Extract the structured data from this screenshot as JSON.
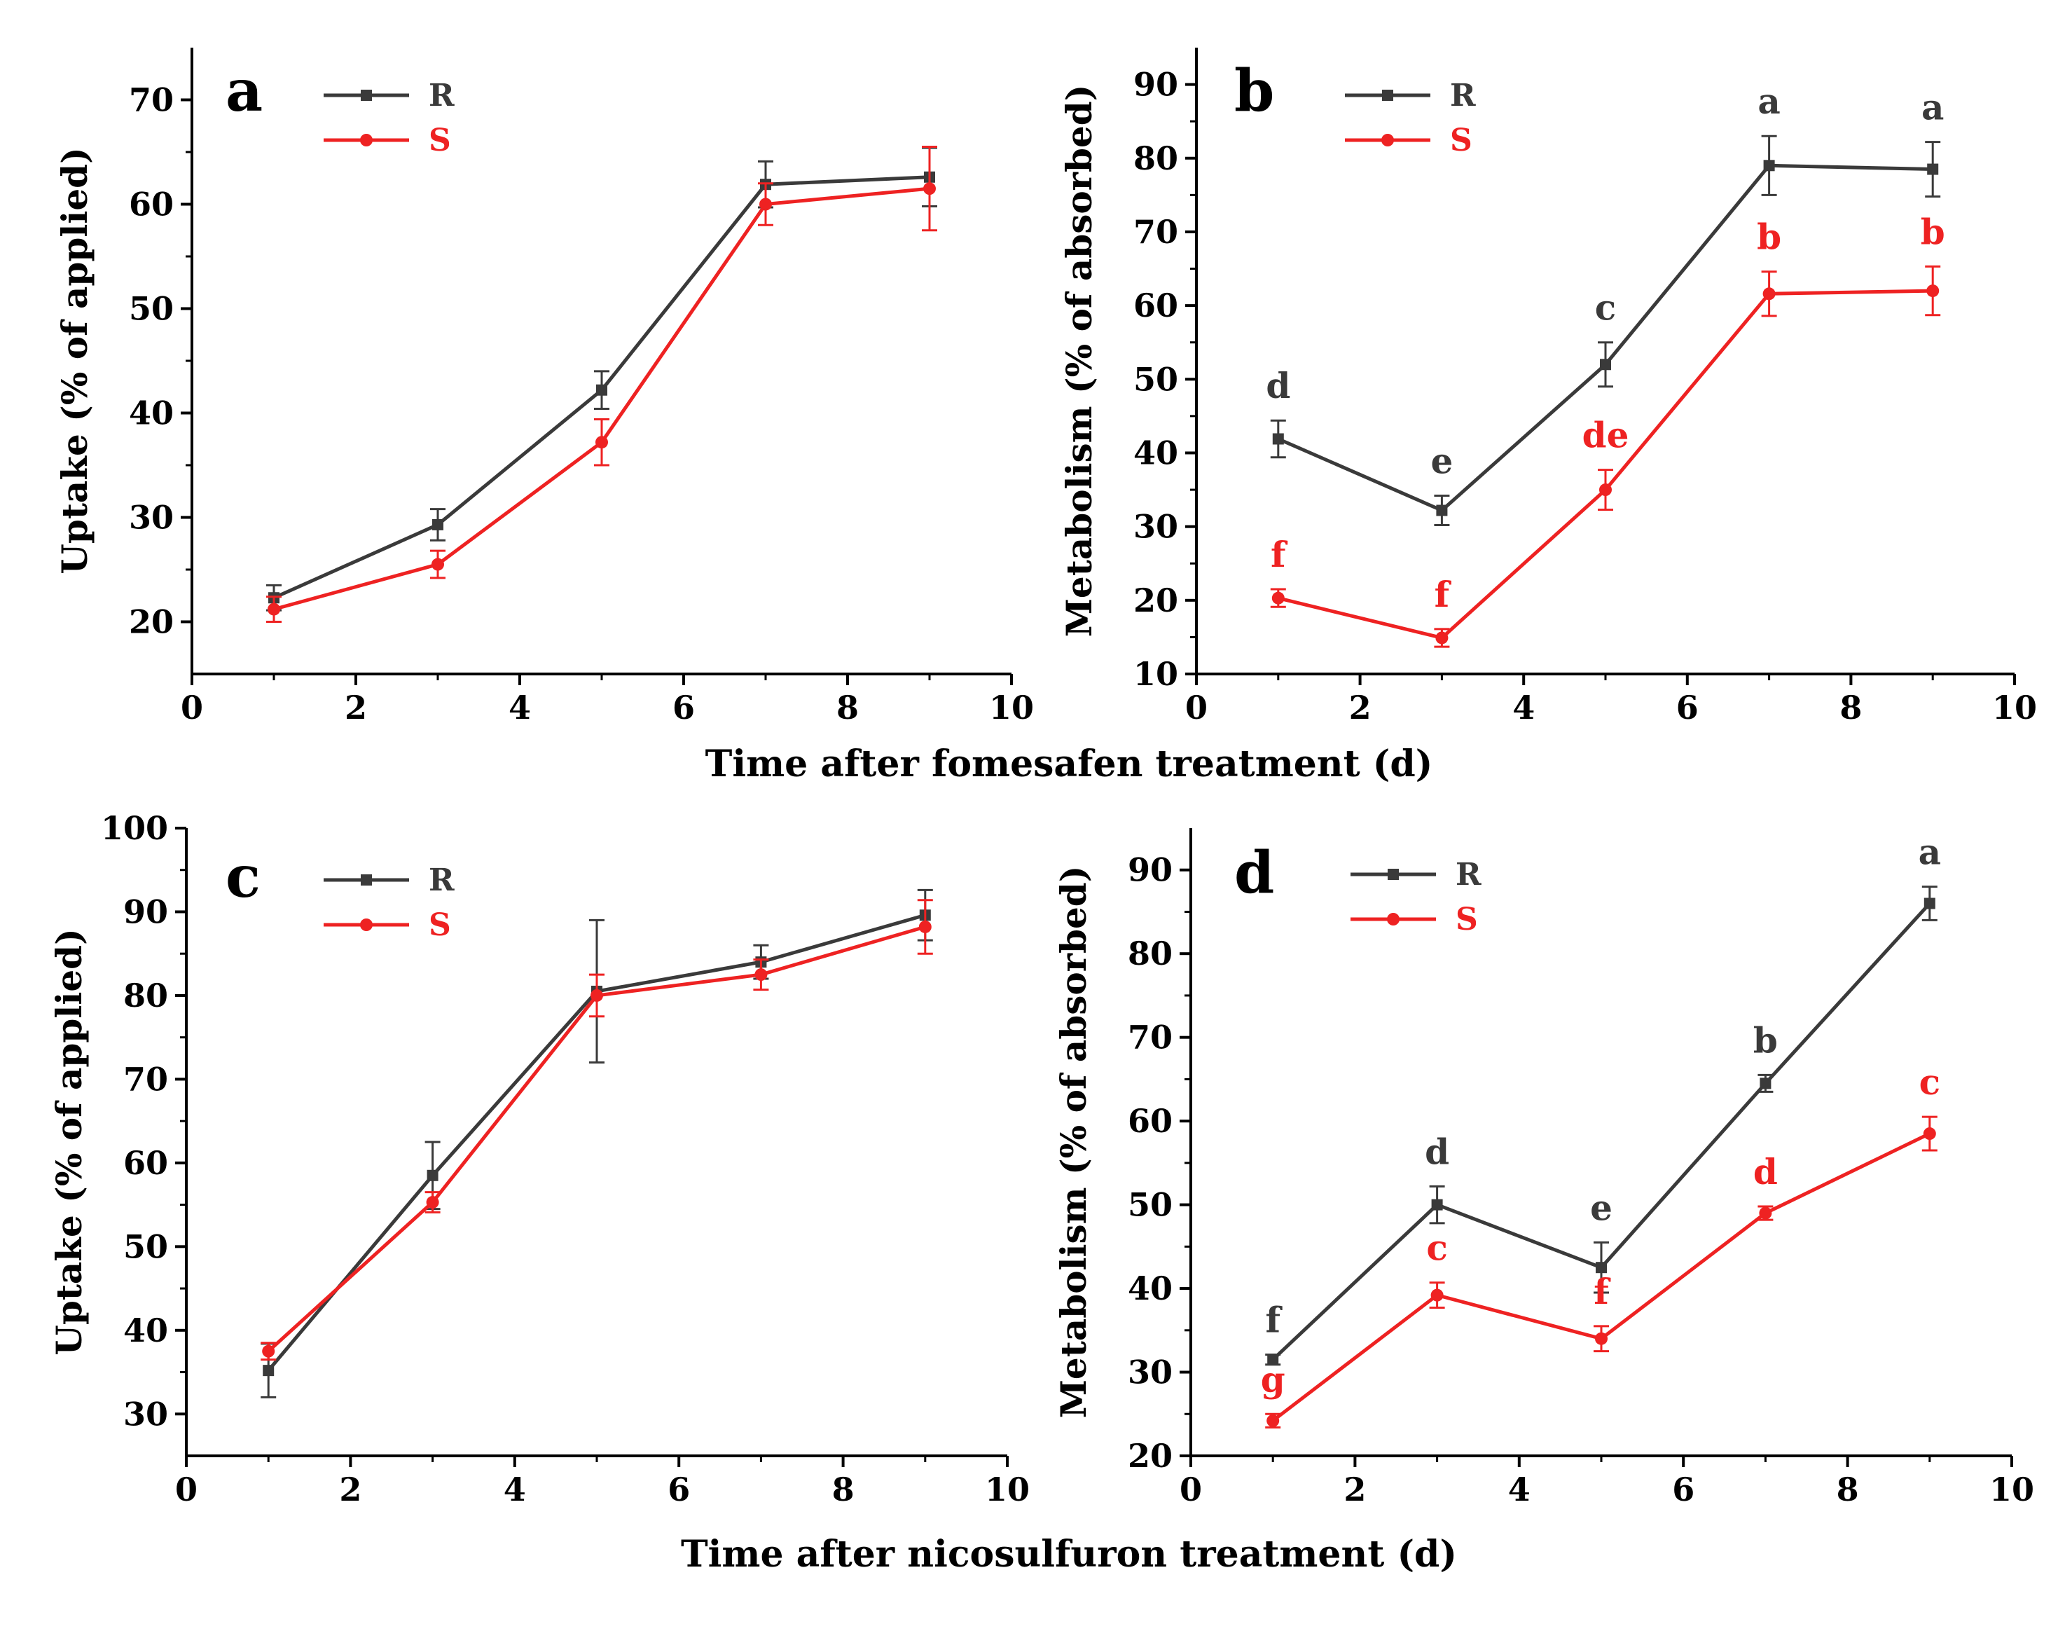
{
  "colors": {
    "R": "#3a3a3a",
    "S": "#ee2222",
    "axis": "#000000"
  },
  "xlabels": [
    "Time after fomesafen treatment (d)",
    "Time after nicosulfuron treatment (d)"
  ],
  "chart_data": [
    {
      "panel": "a",
      "type": "line",
      "ylabel": "Uptake (% of applied)",
      "xlim": [
        0,
        10
      ],
      "ylim": [
        15,
        75
      ],
      "xticks": [
        0,
        2,
        4,
        6,
        8,
        10
      ],
      "yticks": [
        20,
        30,
        40,
        50,
        60,
        70
      ],
      "legend": [
        "R",
        "S"
      ],
      "series": [
        {
          "name": "R",
          "x": [
            1,
            3,
            5,
            7,
            9
          ],
          "y": [
            22.3,
            29.3,
            42.2,
            61.9,
            62.6
          ],
          "err": [
            1.2,
            1.5,
            1.8,
            2.2,
            2.8
          ],
          "labels": []
        },
        {
          "name": "S",
          "x": [
            1,
            3,
            5,
            7,
            9
          ],
          "y": [
            21.2,
            25.5,
            37.2,
            60.0,
            61.5
          ],
          "err": [
            1.2,
            1.3,
            2.2,
            2.0,
            4.0
          ],
          "labels": []
        }
      ]
    },
    {
      "panel": "b",
      "type": "line",
      "ylabel": "Metabolism (% of absorbed)",
      "xlim": [
        0,
        10
      ],
      "ylim": [
        10,
        95
      ],
      "xticks": [
        0,
        2,
        4,
        6,
        8,
        10
      ],
      "yticks": [
        10,
        20,
        30,
        40,
        50,
        60,
        70,
        80,
        90
      ],
      "legend": [
        "R",
        "S"
      ],
      "series": [
        {
          "name": "R",
          "x": [
            1,
            3,
            5,
            7,
            9
          ],
          "y": [
            41.9,
            32.2,
            52.0,
            79.0,
            78.5
          ],
          "err": [
            2.5,
            2.0,
            3.0,
            4.0,
            3.7
          ],
          "labels": [
            "d",
            "e",
            "c",
            "a",
            "a"
          ]
        },
        {
          "name": "S",
          "x": [
            1,
            3,
            5,
            7,
            9
          ],
          "y": [
            20.3,
            14.9,
            35.0,
            61.6,
            62.0
          ],
          "err": [
            1.2,
            1.2,
            2.7,
            3.0,
            3.3
          ],
          "labels": [
            "f",
            "f",
            "de",
            "b",
            "b"
          ]
        }
      ]
    },
    {
      "panel": "c",
      "type": "line",
      "ylabel": "Uptake (% of applied)",
      "xlim": [
        0,
        10
      ],
      "ylim": [
        25,
        100
      ],
      "xticks": [
        0,
        2,
        4,
        6,
        8,
        10
      ],
      "yticks": [
        30,
        40,
        50,
        60,
        70,
        80,
        90,
        100
      ],
      "legend": [
        "R",
        "S"
      ],
      "series": [
        {
          "name": "R",
          "x": [
            1,
            3,
            5,
            7,
            9
          ],
          "y": [
            35.2,
            58.5,
            80.5,
            84.0,
            89.6
          ],
          "err": [
            3.2,
            4.0,
            8.5,
            2.0,
            3.0
          ],
          "labels": []
        },
        {
          "name": "S",
          "x": [
            1,
            3,
            5,
            7,
            9
          ],
          "y": [
            37.5,
            55.3,
            80.0,
            82.5,
            88.2
          ],
          "err": [
            1.0,
            1.2,
            2.5,
            1.8,
            3.2
          ],
          "labels": []
        }
      ]
    },
    {
      "panel": "d",
      "type": "line",
      "ylabel": "Metabolism (% of absorbed)",
      "xlim": [
        0,
        10
      ],
      "ylim": [
        20,
        95
      ],
      "xticks": [
        0,
        2,
        4,
        6,
        8,
        10
      ],
      "yticks": [
        20,
        30,
        40,
        50,
        60,
        70,
        80,
        90
      ],
      "legend": [
        "R",
        "S"
      ],
      "series": [
        {
          "name": "R",
          "x": [
            1,
            3,
            5,
            7,
            9
          ],
          "y": [
            31.5,
            50.0,
            42.5,
            64.5,
            86.0
          ],
          "err": [
            0.6,
            2.2,
            3.0,
            1.0,
            2.0
          ],
          "labels": [
            "f",
            "d",
            "e",
            "b",
            "a"
          ]
        },
        {
          "name": "S",
          "x": [
            1,
            3,
            5,
            7,
            9
          ],
          "y": [
            24.2,
            39.2,
            34.0,
            49.0,
            58.5
          ],
          "err": [
            0.8,
            1.5,
            1.5,
            0.8,
            2.0
          ],
          "labels": [
            "g",
            "c",
            "f",
            "d",
            "c"
          ]
        }
      ]
    }
  ]
}
